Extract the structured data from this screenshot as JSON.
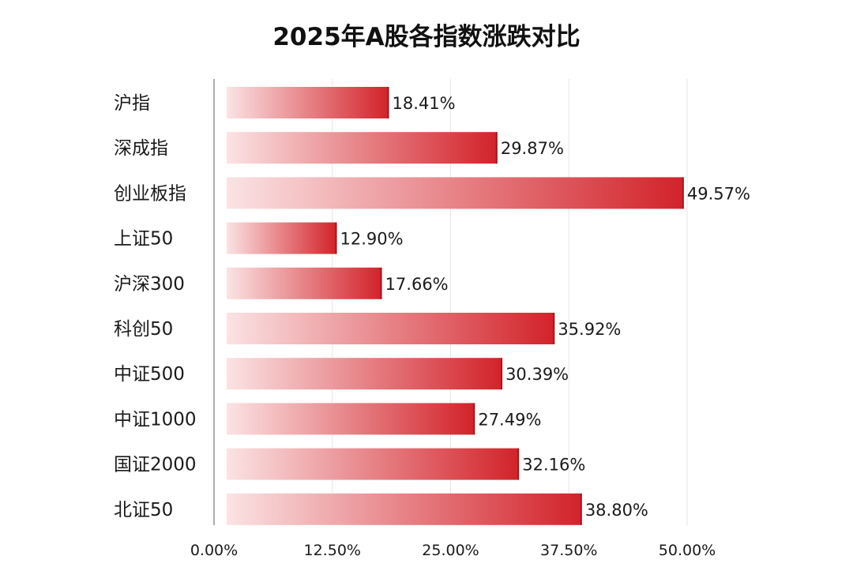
{
  "chart_data": {
    "type": "bar",
    "orientation": "horizontal",
    "title": "2025年A股各指数涨跌对比",
    "categories": [
      "沪指",
      "深成指",
      "创业板指",
      "上证50",
      "沪深300",
      "科创50",
      "中证500",
      "中证1000",
      "国证2000",
      "北证50"
    ],
    "values": [
      18.41,
      29.87,
      49.57,
      12.9,
      17.66,
      35.92,
      30.39,
      27.49,
      32.16,
      38.8
    ],
    "value_labels": [
      "18.41%",
      "29.87%",
      "49.57%",
      "12.90%",
      "17.66%",
      "35.92%",
      "30.39%",
      "27.49%",
      "32.16%",
      "38.80%"
    ],
    "xlim": [
      0,
      50
    ],
    "x_ticks": [
      0,
      12.5,
      25,
      37.5,
      50
    ],
    "x_tick_labels": [
      "0.00%",
      "12.50%",
      "25.00%",
      "37.50%",
      "50.00%"
    ],
    "xlabel": "",
    "ylabel": "",
    "grid": false,
    "legend": "none",
    "bar_color_start": "#fbe3e4",
    "bar_color_end": "#d2232a",
    "bar_edge_color": "#a3161c"
  }
}
